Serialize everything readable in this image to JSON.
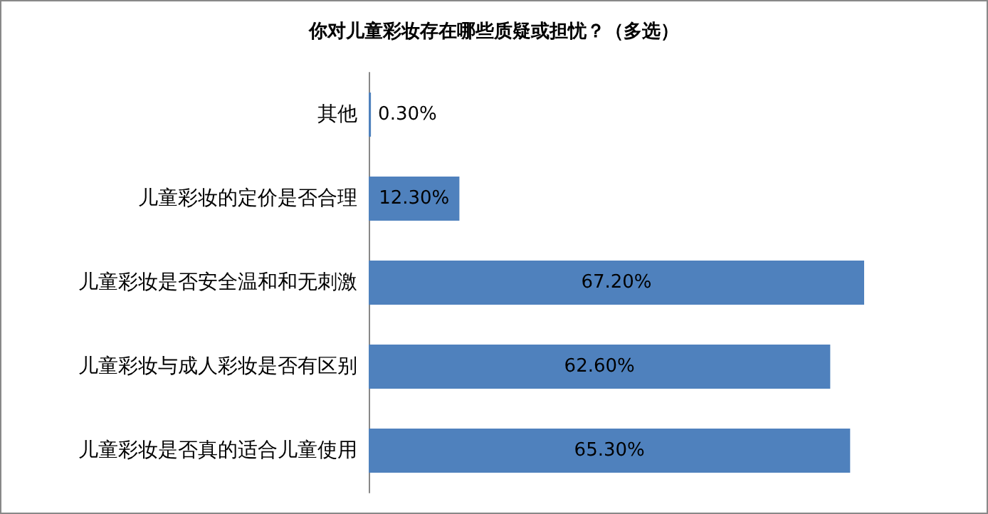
{
  "chart_data": {
    "type": "bar",
    "orientation": "horizontal",
    "title": "你对儿童彩妆存在哪些质疑或担忧？（多选）",
    "categories": [
      "其他",
      "儿童彩妆的定价是否合理",
      "儿童彩妆是否安全温和和无刺激",
      "儿童彩妆与成人彩妆是否有区别",
      "儿童彩妆是否真的适合儿童使用"
    ],
    "values": [
      0.3,
      12.3,
      67.2,
      62.6,
      65.3
    ],
    "value_labels": [
      "0.30%",
      "12.30%",
      "67.20%",
      "62.60%",
      "65.30%"
    ],
    "color": "#4f81bd"
  }
}
